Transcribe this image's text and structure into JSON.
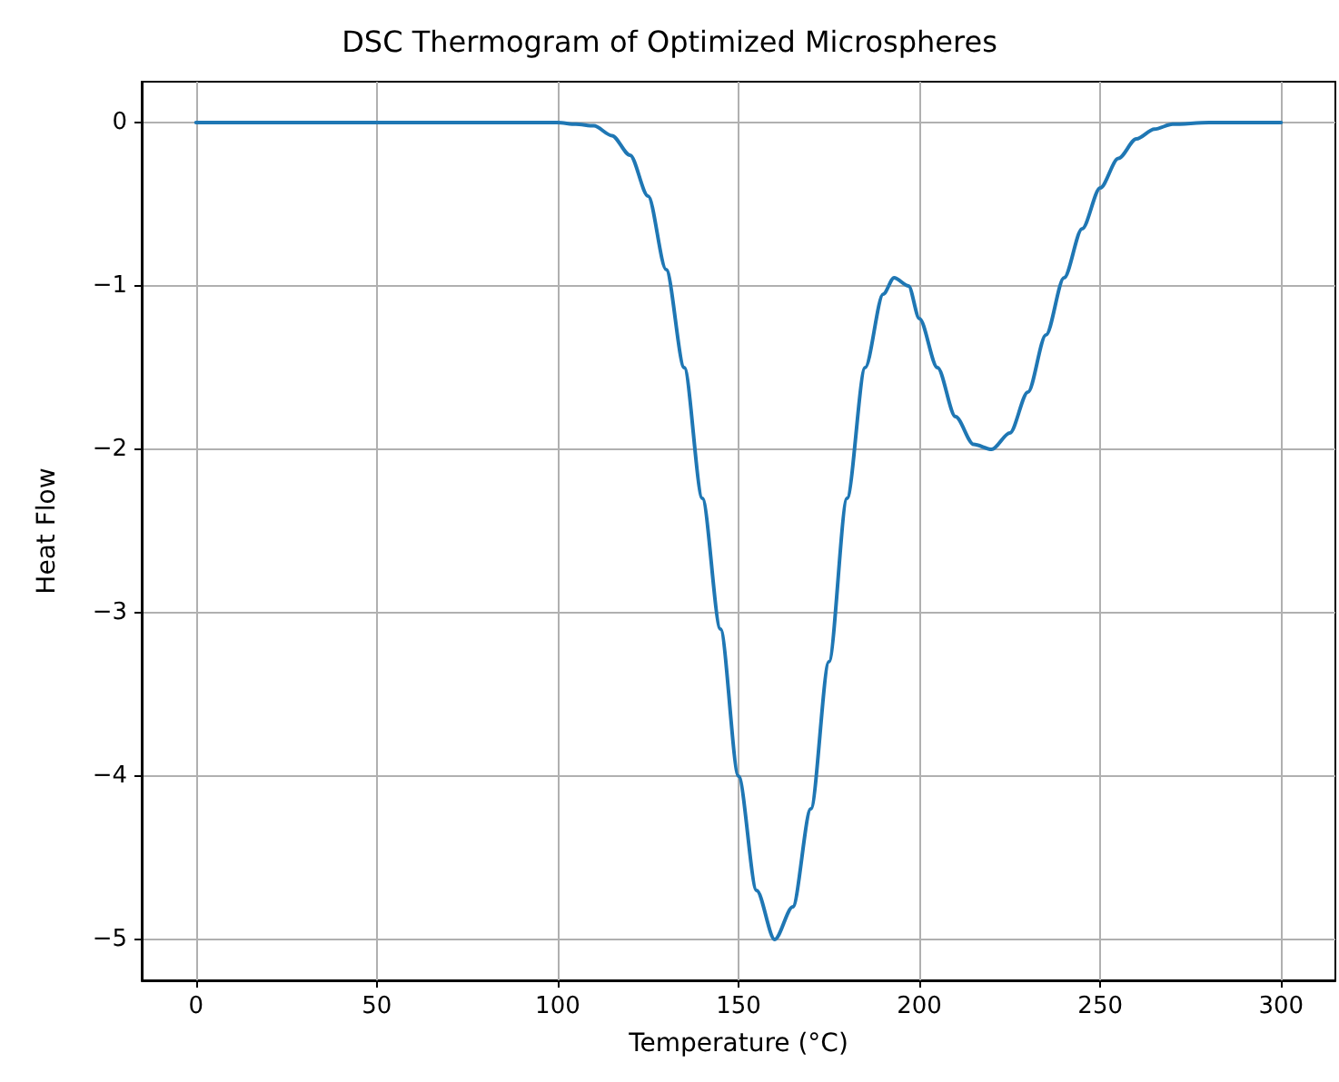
{
  "chart_data": {
    "type": "line",
    "title": "DSC Thermogram of Optimized Microspheres",
    "xlabel": "Temperature (°C)",
    "ylabel": "Heat Flow",
    "x": [
      0,
      25,
      50,
      75,
      100,
      105,
      110,
      115,
      120,
      125,
      130,
      135,
      140,
      145,
      150,
      155,
      160,
      165,
      170,
      175,
      180,
      185,
      190,
      193,
      197,
      200,
      205,
      210,
      215,
      220,
      225,
      230,
      235,
      240,
      245,
      250,
      255,
      260,
      265,
      270,
      280,
      300
    ],
    "series": [
      {
        "color": "#1f77b4",
        "values": [
          0,
          0,
          0,
          0,
          0,
          -0.01,
          -0.02,
          -0.08,
          -0.2,
          -0.45,
          -0.9,
          -1.5,
          -2.3,
          -3.1,
          -4.0,
          -4.7,
          -5.0,
          -4.8,
          -4.2,
          -3.3,
          -2.3,
          -1.5,
          -1.05,
          -0.95,
          -1.0,
          -1.2,
          -1.5,
          -1.8,
          -1.97,
          -2.0,
          -1.9,
          -1.65,
          -1.3,
          -0.95,
          -0.65,
          -0.4,
          -0.22,
          -0.1,
          -0.04,
          -0.01,
          0,
          0
        ]
      }
    ],
    "xlim": [
      -15,
      315
    ],
    "xticks": [
      0,
      50,
      100,
      150,
      200,
      250,
      300
    ],
    "ylim": [
      -5.25,
      0.25
    ],
    "yticks": [
      -5,
      -4,
      -3,
      -2,
      -1,
      0
    ],
    "grid": true,
    "marker": "none",
    "line_style": "solid"
  }
}
